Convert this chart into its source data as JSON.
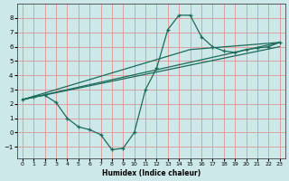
{
  "xlabel": "Humidex (Indice chaleur)",
  "xlim": [
    -0.5,
    23.5
  ],
  "ylim": [
    -1.8,
    9.0
  ],
  "xticks": [
    0,
    1,
    2,
    3,
    4,
    5,
    6,
    7,
    8,
    9,
    10,
    11,
    12,
    13,
    14,
    15,
    16,
    17,
    18,
    19,
    20,
    21,
    22,
    23
  ],
  "yticks": [
    -1,
    0,
    1,
    2,
    3,
    4,
    5,
    6,
    7,
    8
  ],
  "bg_color": "#cce8e8",
  "grid_color": "#dda0a0",
  "line_color": "#1a6b5a",
  "lines": [
    {
      "x": [
        0,
        1,
        2,
        3,
        4,
        5,
        6,
        7,
        8,
        9,
        10,
        11,
        12,
        13,
        14,
        15,
        16,
        17,
        18,
        19,
        20,
        21,
        22,
        23
      ],
      "y": [
        2.3,
        2.5,
        2.6,
        2.1,
        1.0,
        0.4,
        0.2,
        -0.15,
        -1.2,
        -1.1,
        0.0,
        3.0,
        4.5,
        7.2,
        8.2,
        8.2,
        6.7,
        6.0,
        5.7,
        5.6,
        5.8,
        5.9,
        6.0,
        6.3
      ],
      "marker": true
    },
    {
      "x": [
        0,
        23
      ],
      "y": [
        2.3,
        6.3
      ],
      "marker": false
    },
    {
      "x": [
        0,
        23
      ],
      "y": [
        2.3,
        6.0
      ],
      "marker": false
    },
    {
      "x": [
        0,
        15,
        23
      ],
      "y": [
        2.3,
        5.8,
        6.3
      ],
      "marker": false
    }
  ]
}
